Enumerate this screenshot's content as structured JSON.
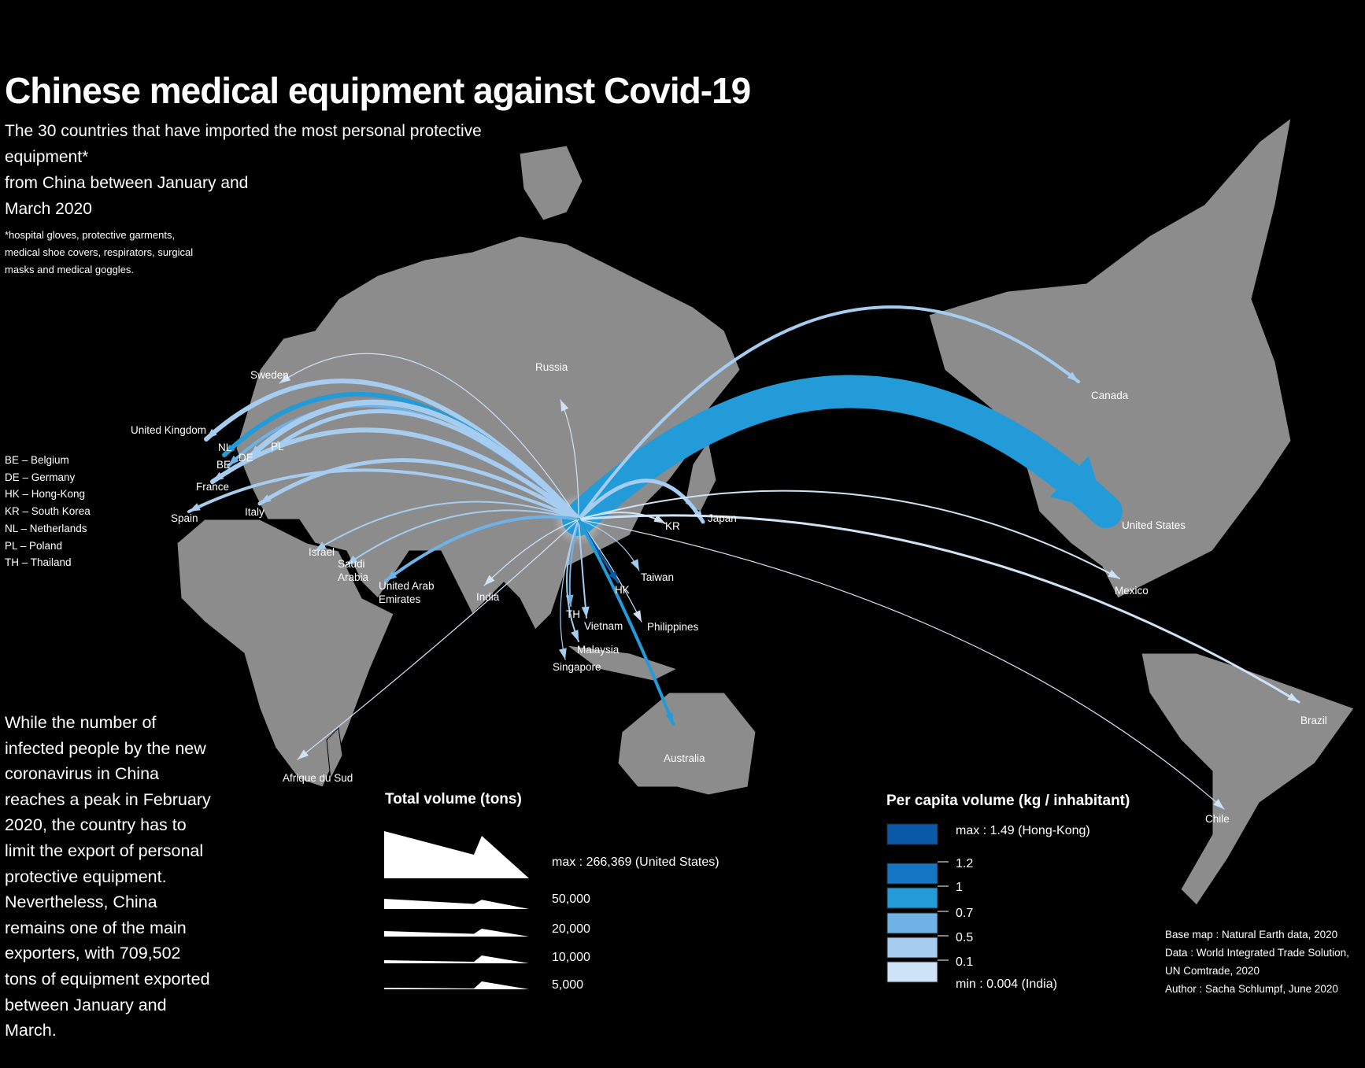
{
  "header": {
    "title": "Chinese medical equipment against Covid-19",
    "subtitle_lines": [
      "The 30 countries that have imported the most personal protective equipment*",
      "from China between January and",
      "March 2020"
    ],
    "footnote": "*hospital gloves, protective garments, medical shoe covers, respirators, surgical masks and medical goggles."
  },
  "abbreviations": [
    "BE – Belgium",
    "DE – Germany",
    "HK – Hong-Kong",
    "KR – South Korea",
    "NL – Netherlands",
    "PL – Poland",
    "TH – Thailand"
  ],
  "body_text": "While the number of infected people by the new coronavirus in China reaches a peak in February 2020, the country has to limit the export of personal protective equipment. Nevertheless, China remains one of the main exporters, with 709,502 tons of equipment exported between January and March.",
  "country_labels": {
    "russia": "Russia",
    "sweden": "Sweden",
    "united_kingdom": "United Kingdom",
    "nl": "NL",
    "be": "BE",
    "de": "DE",
    "pl": "PL",
    "france": "France",
    "italy": "Italy",
    "spain": "Spain",
    "israel": "Israel",
    "saudi_arabia_1": "Saudi",
    "saudi_arabia_2": "Arabia",
    "uae_1": "United Arab",
    "uae_2": "Emirates",
    "india": "India",
    "th": "TH",
    "vietnam": "Vietnam",
    "malaysia": "Malaysia",
    "singapore": "Singapore",
    "philippines": "Philippines",
    "hk": "HK",
    "taiwan": "Taiwan",
    "kr": "KR",
    "japan": "Japan",
    "canada": "Canada",
    "united_states": "United States",
    "mexico": "Mexico",
    "brazil": "Brazil",
    "chile": "Chile",
    "australia": "Australia",
    "south_africa": "Afrique du Sud"
  },
  "legend_volume": {
    "title": "Total volume (tons)",
    "items": [
      {
        "label": "max : 266,369 (United States)",
        "value": 266369
      },
      {
        "label": "50,000",
        "value": 50000
      },
      {
        "label": "20,000",
        "value": 20000
      },
      {
        "label": "10,000",
        "value": 10000
      },
      {
        "label": "5,000",
        "value": 5000
      }
    ]
  },
  "legend_per_capita": {
    "title": "Per capita volume (kg / inhabitant)",
    "max_label": "max : 1.49 (Hong-Kong)",
    "min_label": "min : 0.004 (India)",
    "breaks": [
      "1.2",
      "1",
      "0.7",
      "0.5",
      "0.1"
    ],
    "colors": [
      "#0a5aa8",
      "#1576c4",
      "#239bd8",
      "#6fb2e6",
      "#a6cdf0",
      "#cfe3f7"
    ]
  },
  "credits": [
    "Base map : Natural Earth data, 2020",
    "Data : World Integrated Trade Solution, UN Comtrade, 2020",
    "Author : Sacha Schlumpf, June 2020"
  ],
  "colors": {
    "land": "#8c8c8c",
    "ocean": "#000000",
    "text": "#ffffff"
  }
}
